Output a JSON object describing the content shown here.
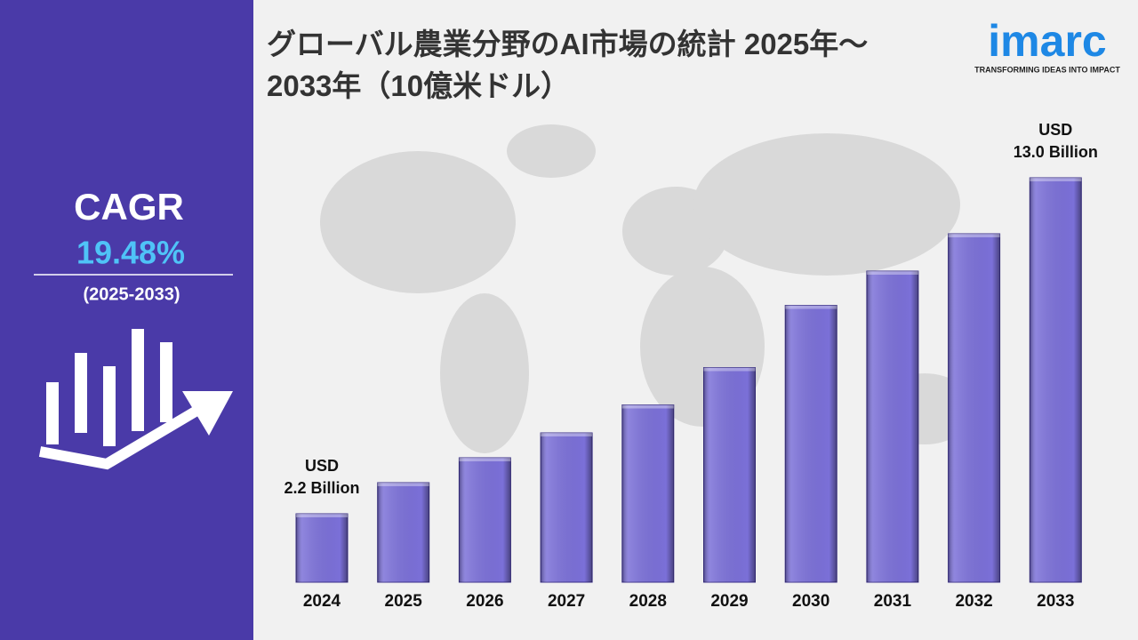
{
  "chart_data": {
    "type": "bar",
    "title": "グローバル農業分野のAI市場の統計 2025年～\n2033年（10億米ドル）",
    "categories": [
      "2024",
      "2025",
      "2026",
      "2027",
      "2028",
      "2029",
      "2030",
      "2031",
      "2032",
      "2033"
    ],
    "values": [
      2.2,
      3.2,
      4.0,
      4.8,
      5.7,
      6.9,
      8.9,
      10.0,
      11.2,
      13.0
    ],
    "value_labels": [
      "USD\n2.2 Billion",
      null,
      null,
      null,
      null,
      null,
      null,
      null,
      null,
      "USD\n13.0 Billion"
    ],
    "color": "#7b70d8"
  },
  "cagr": {
    "label": "CAGR",
    "value": "19.48%",
    "period": "(2025-2033)"
  },
  "logo": {
    "name": "imarc",
    "tagline": "TRANSFORMING IDEAS INTO IMPACT"
  }
}
